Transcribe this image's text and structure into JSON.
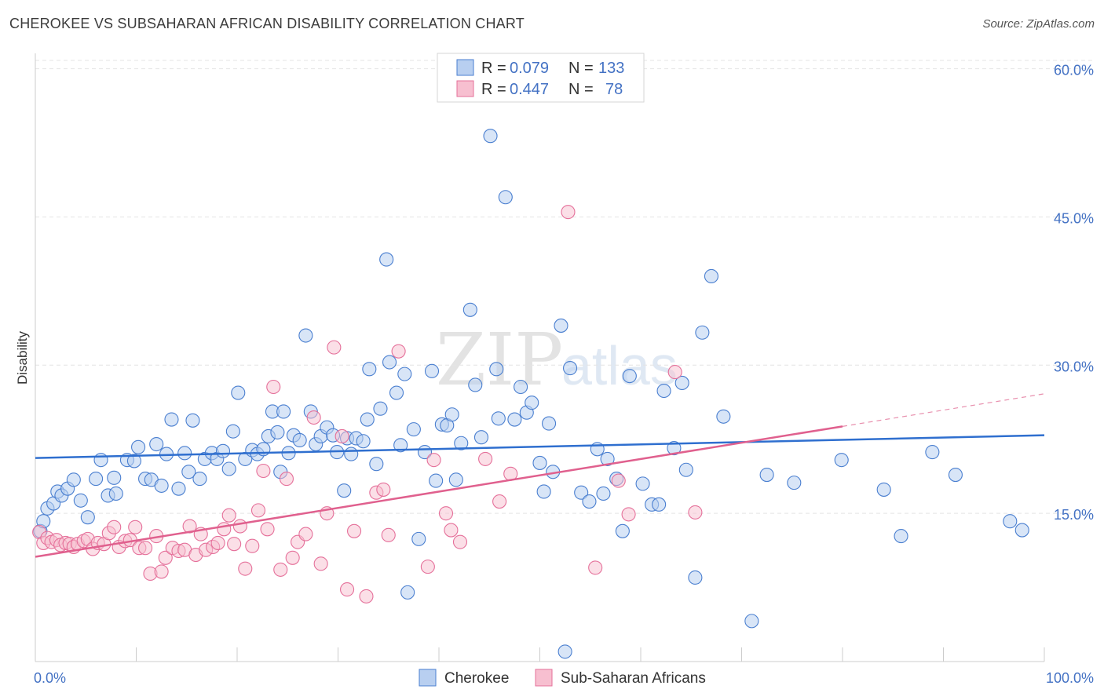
{
  "title": "CHEROKEE VS SUBSAHARAN AFRICAN DISABILITY CORRELATION CHART",
  "source": "Source: ZipAtlas.com",
  "watermark": {
    "part1": "ZIP",
    "part2": "atlas"
  },
  "legend": {
    "rows": [
      {
        "r_label": "R =",
        "r_value": "0.079",
        "n_label": "N =",
        "n_value": "133"
      },
      {
        "r_label": "R =",
        "r_value": "0.447",
        "n_label": "N =",
        "n_value": "78"
      }
    ]
  },
  "bottom_legend": [
    "Cherokee",
    "Sub-Saharan Africans"
  ],
  "chart_data": {
    "type": "scatter",
    "title": "CHEROKEE VS SUBSAHARAN AFRICAN DISABILITY CORRELATION CHART",
    "xlabel": "",
    "ylabel": "Disability",
    "xlim": [
      0,
      100
    ],
    "ylim": [
      0,
      61
    ],
    "x_tick_labels": [
      "0.0%",
      "100.0%"
    ],
    "y_ticks": [
      15,
      30,
      45,
      60
    ],
    "y_tick_labels": [
      "15.0%",
      "30.0%",
      "45.0%",
      "60.0%"
    ],
    "grid": "horizontal dashed",
    "legend_position": "top-center",
    "colors": {
      "cherokee": "#4a7fd0",
      "subsaharan": "#e5709a",
      "cherokee_fill": "#b8cff0",
      "subsaharan_fill": "#f7bfd0",
      "tick_label": "#4472c4"
    },
    "series": [
      {
        "name": "Cherokee",
        "r": 0.079,
        "n": 133,
        "trend": {
          "x0": 0,
          "y0": 20.6,
          "x1": 100,
          "y1": 22.9
        },
        "points": [
          [
            0.5,
            13.2
          ],
          [
            0.8,
            14.2
          ],
          [
            1.2,
            15.5
          ],
          [
            1.8,
            16.0
          ],
          [
            2.2,
            17.2
          ],
          [
            2.6,
            16.8
          ],
          [
            3.2,
            17.5
          ],
          [
            3.8,
            18.4
          ],
          [
            4.5,
            16.3
          ],
          [
            5.2,
            14.6
          ],
          [
            6.0,
            18.5
          ],
          [
            6.5,
            20.4
          ],
          [
            7.2,
            16.8
          ],
          [
            7.8,
            18.6
          ],
          [
            8.0,
            17.0
          ],
          [
            9.1,
            20.4
          ],
          [
            9.8,
            20.3
          ],
          [
            10.2,
            21.7
          ],
          [
            10.9,
            18.5
          ],
          [
            11.5,
            18.4
          ],
          [
            12.0,
            22.0
          ],
          [
            12.5,
            17.8
          ],
          [
            13.0,
            21.0
          ],
          [
            13.5,
            24.5
          ],
          [
            14.2,
            17.5
          ],
          [
            14.8,
            21.1
          ],
          [
            15.2,
            19.2
          ],
          [
            15.6,
            24.4
          ],
          [
            16.3,
            18.5
          ],
          [
            16.8,
            20.5
          ],
          [
            17.5,
            21.1
          ],
          [
            18.0,
            20.5
          ],
          [
            18.6,
            21.3
          ],
          [
            19.2,
            19.5
          ],
          [
            19.6,
            23.3
          ],
          [
            20.1,
            27.2
          ],
          [
            20.8,
            20.5
          ],
          [
            21.5,
            21.4
          ],
          [
            22.0,
            21.0
          ],
          [
            22.6,
            21.5
          ],
          [
            23.1,
            22.8
          ],
          [
            23.5,
            25.3
          ],
          [
            24.0,
            23.2
          ],
          [
            24.3,
            19.2
          ],
          [
            24.6,
            25.3
          ],
          [
            25.1,
            21.1
          ],
          [
            25.6,
            22.9
          ],
          [
            26.2,
            22.4
          ],
          [
            26.8,
            33.0
          ],
          [
            27.3,
            25.3
          ],
          [
            27.8,
            22.0
          ],
          [
            28.3,
            22.8
          ],
          [
            28.9,
            23.7
          ],
          [
            29.5,
            22.9
          ],
          [
            29.9,
            21.2
          ],
          [
            30.6,
            17.3
          ],
          [
            30.9,
            22.6
          ],
          [
            31.3,
            21.0
          ],
          [
            31.8,
            22.6
          ],
          [
            32.5,
            22.3
          ],
          [
            32.9,
            24.5
          ],
          [
            33.1,
            29.6
          ],
          [
            33.8,
            20.0
          ],
          [
            34.2,
            25.6
          ],
          [
            34.8,
            40.7
          ],
          [
            35.1,
            30.3
          ],
          [
            35.8,
            27.2
          ],
          [
            36.2,
            21.9
          ],
          [
            36.6,
            29.1
          ],
          [
            36.9,
            7.0
          ],
          [
            37.5,
            23.5
          ],
          [
            38.0,
            12.4
          ],
          [
            38.6,
            21.2
          ],
          [
            39.3,
            29.4
          ],
          [
            39.7,
            18.3
          ],
          [
            40.3,
            24.0
          ],
          [
            40.8,
            23.9
          ],
          [
            41.3,
            25.0
          ],
          [
            41.7,
            18.4
          ],
          [
            42.2,
            22.1
          ],
          [
            43.1,
            35.6
          ],
          [
            43.6,
            28.0
          ],
          [
            44.2,
            22.7
          ],
          [
            45.1,
            53.2
          ],
          [
            45.7,
            29.6
          ],
          [
            45.9,
            24.6
          ],
          [
            46.6,
            47.0
          ],
          [
            47.5,
            24.5
          ],
          [
            48.1,
            27.8
          ],
          [
            48.7,
            25.2
          ],
          [
            49.2,
            26.2
          ],
          [
            50.0,
            20.1
          ],
          [
            50.4,
            17.2
          ],
          [
            50.9,
            24.1
          ],
          [
            51.3,
            19.2
          ],
          [
            52.1,
            34.0
          ],
          [
            52.5,
            1.0
          ],
          [
            53.0,
            29.7
          ],
          [
            54.1,
            17.1
          ],
          [
            54.9,
            16.2
          ],
          [
            55.7,
            21.5
          ],
          [
            56.3,
            17.0
          ],
          [
            56.7,
            20.5
          ],
          [
            57.6,
            18.5
          ],
          [
            58.2,
            13.2
          ],
          [
            58.9,
            28.9
          ],
          [
            60.2,
            18.0
          ],
          [
            61.1,
            15.9
          ],
          [
            61.8,
            15.9
          ],
          [
            62.3,
            27.4
          ],
          [
            63.3,
            21.6
          ],
          [
            64.1,
            28.2
          ],
          [
            64.5,
            19.4
          ],
          [
            65.4,
            8.5
          ],
          [
            66.1,
            33.3
          ],
          [
            67.0,
            39.0
          ],
          [
            68.2,
            24.8
          ],
          [
            71.0,
            4.1
          ],
          [
            72.5,
            18.9
          ],
          [
            75.2,
            18.1
          ],
          [
            79.9,
            20.4
          ],
          [
            84.1,
            17.4
          ],
          [
            85.8,
            12.7
          ],
          [
            88.9,
            21.2
          ],
          [
            91.2,
            18.9
          ],
          [
            96.6,
            14.2
          ],
          [
            97.8,
            13.3
          ]
        ]
      },
      {
        "name": "Sub-Saharan Africans",
        "r": 0.447,
        "n": 78,
        "trend": {
          "x0": 0,
          "y0": 10.6,
          "x1": 80,
          "y1": 23.8
        },
        "trend_extension": {
          "x0": 80,
          "y0": 23.8,
          "x1": 100,
          "y1": 27.1
        },
        "points": [
          [
            0.4,
            13.1
          ],
          [
            0.8,
            12.0
          ],
          [
            1.2,
            12.5
          ],
          [
            1.6,
            12.1
          ],
          [
            2.1,
            12.3
          ],
          [
            2.5,
            11.8
          ],
          [
            3.0,
            12.0
          ],
          [
            3.4,
            11.9
          ],
          [
            3.8,
            11.6
          ],
          [
            4.2,
            11.9
          ],
          [
            4.8,
            12.2
          ],
          [
            5.2,
            12.4
          ],
          [
            5.7,
            11.4
          ],
          [
            6.2,
            12.0
          ],
          [
            6.8,
            11.9
          ],
          [
            7.3,
            13.0
          ],
          [
            7.8,
            13.6
          ],
          [
            8.3,
            11.6
          ],
          [
            8.9,
            12.2
          ],
          [
            9.4,
            12.3
          ],
          [
            9.9,
            13.6
          ],
          [
            10.3,
            11.5
          ],
          [
            10.9,
            11.5
          ],
          [
            11.4,
            8.9
          ],
          [
            12.0,
            12.7
          ],
          [
            12.5,
            9.1
          ],
          [
            12.9,
            10.5
          ],
          [
            13.6,
            11.5
          ],
          [
            14.2,
            11.2
          ],
          [
            14.8,
            11.3
          ],
          [
            15.3,
            13.7
          ],
          [
            15.9,
            10.8
          ],
          [
            16.4,
            12.9
          ],
          [
            16.9,
            11.3
          ],
          [
            17.6,
            11.6
          ],
          [
            18.1,
            12.0
          ],
          [
            18.7,
            13.4
          ],
          [
            19.2,
            14.8
          ],
          [
            19.7,
            11.9
          ],
          [
            20.3,
            13.7
          ],
          [
            20.8,
            9.4
          ],
          [
            21.5,
            11.7
          ],
          [
            22.1,
            15.3
          ],
          [
            22.6,
            19.3
          ],
          [
            23.0,
            13.4
          ],
          [
            23.6,
            27.8
          ],
          [
            24.3,
            9.3
          ],
          [
            24.9,
            18.5
          ],
          [
            25.5,
            10.5
          ],
          [
            26.0,
            12.1
          ],
          [
            26.8,
            12.9
          ],
          [
            27.6,
            24.7
          ],
          [
            28.3,
            9.9
          ],
          [
            28.9,
            15.0
          ],
          [
            29.6,
            31.8
          ],
          [
            30.4,
            22.8
          ],
          [
            30.9,
            7.3
          ],
          [
            31.6,
            13.2
          ],
          [
            32.8,
            6.6
          ],
          [
            33.8,
            17.1
          ],
          [
            34.5,
            17.4
          ],
          [
            35.0,
            12.8
          ],
          [
            36.0,
            31.4
          ],
          [
            38.9,
            9.6
          ],
          [
            39.5,
            20.4
          ],
          [
            40.7,
            15.0
          ],
          [
            41.2,
            13.3
          ],
          [
            42.1,
            12.1
          ],
          [
            44.6,
            20.5
          ],
          [
            46.0,
            16.2
          ],
          [
            47.1,
            19.0
          ],
          [
            52.8,
            45.5
          ],
          [
            55.5,
            9.5
          ],
          [
            57.8,
            18.3
          ],
          [
            58.8,
            14.9
          ],
          [
            63.4,
            29.3
          ],
          [
            65.4,
            15.1
          ]
        ]
      }
    ]
  }
}
